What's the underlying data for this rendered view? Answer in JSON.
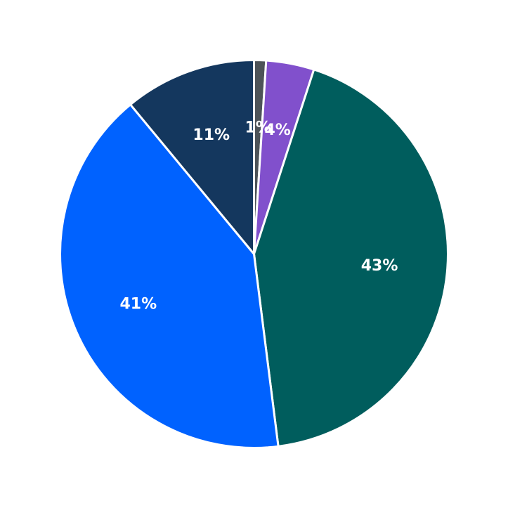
{
  "chart_data": {
    "type": "pie",
    "title": "",
    "legend": "none",
    "slices": [
      {
        "value": 1,
        "label": "1%",
        "color": "#4d5358"
      },
      {
        "value": 4,
        "label": "4%",
        "color": "#8150cc"
      },
      {
        "value": 43,
        "label": "43%",
        "color": "#005d5d"
      },
      {
        "value": 41,
        "label": "41%",
        "color": "#0062ff"
      },
      {
        "value": 11,
        "label": "11%",
        "color": "#14375e"
      }
    ]
  }
}
